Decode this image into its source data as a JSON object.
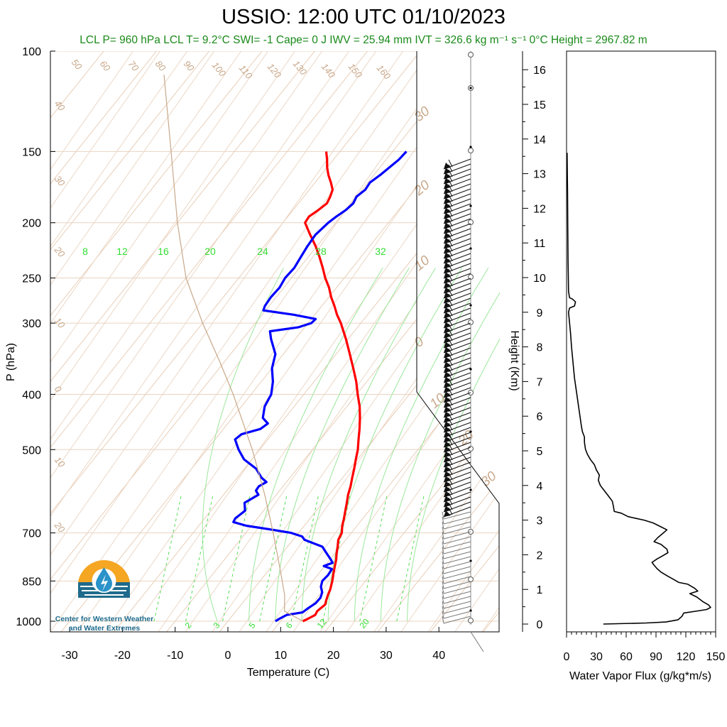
{
  "title": "USSIO: 12:00 UTC 01/10/2023",
  "subtitle": "LCL P= 960 hPa  LCL T= 9.2°C  SWI= -1  Cape= 0 J  IWV = 25.94 mm  IVT = 326.6 kg m⁻¹ s⁻¹  0°C Height = 2967.82 m",
  "logo": {
    "line1": "Center for Western Weather",
    "line2": "and Water Extremes",
    "icon": "water-drop-sun-logo"
  },
  "colors": {
    "temperature": "#ff0000",
    "dewpoint": "#0000ff",
    "isotherm": "#c8a88a",
    "mixing_ratio": "#33dd33",
    "subtitle": "#1a8a1a",
    "flux": "#000000"
  },
  "chart_data": [
    {
      "type": "line",
      "name": "skew-t",
      "xlabel": "Temperature (C)",
      "ylabel": "P (hPa)",
      "x_ticks": [
        -30,
        -20,
        -10,
        0,
        10,
        20,
        30,
        40
      ],
      "y_ticks": [
        100,
        150,
        200,
        250,
        300,
        400,
        500,
        700,
        850,
        1000
      ],
      "y_scale": "log",
      "height_ticks": [
        0,
        1,
        2,
        3,
        4,
        5,
        6,
        7,
        8,
        9,
        10,
        11,
        12,
        13,
        14,
        15,
        16
      ],
      "height_label": "Height (Km)",
      "isotherm_labels": [
        "50",
        "60",
        "70",
        "80",
        "90",
        "100",
        "110",
        "120",
        "130",
        "140",
        "150",
        "160",
        "40",
        "30",
        "20",
        "10",
        "0",
        "10",
        "20"
      ],
      "right_isotherm_labels": [
        "30",
        "20",
        "10",
        "0",
        "10",
        "20",
        "30"
      ],
      "mixing_ratio_top_labels": [
        "8",
        "12",
        "16",
        "20",
        "24",
        "28",
        "32"
      ],
      "mixing_ratio_bottom_labels": [
        "2",
        "3",
        "5",
        "6",
        "12",
        "20"
      ],
      "series": [
        {
          "name": "Temperature",
          "points": [
            [
              1000,
              14.2
            ],
            [
              990,
              14.8
            ],
            [
              975,
              15.6
            ],
            [
              960,
              15.4
            ],
            [
              950,
              15.6
            ],
            [
              935,
              15.9
            ],
            [
              920,
              15.5
            ],
            [
              900,
              15.0
            ],
            [
              880,
              14.6
            ],
            [
              860,
              14.0
            ],
            [
              850,
              13.7
            ],
            [
              820,
              12.6
            ],
            [
              800,
              11.9
            ],
            [
              780,
              11.2
            ],
            [
              760,
              10.3
            ],
            [
              740,
              9.5
            ],
            [
              720,
              8.6
            ],
            [
              700,
              8.2
            ],
            [
              680,
              7.2
            ],
            [
              660,
              6.4
            ],
            [
              640,
              5.5
            ],
            [
              620,
              4.6
            ],
            [
              600,
              3.6
            ],
            [
              580,
              2.8
            ],
            [
              560,
              1.8
            ],
            [
              540,
              0.8
            ],
            [
              520,
              -0.3
            ],
            [
              500,
              -1.4
            ],
            [
              480,
              -2.8
            ],
            [
              460,
              -4.2
            ],
            [
              440,
              -5.8
            ],
            [
              420,
              -7.6
            ],
            [
              400,
              -9.8
            ],
            [
              380,
              -12.0
            ],
            [
              360,
              -14.6
            ],
            [
              340,
              -17.4
            ],
            [
              320,
              -20.4
            ],
            [
              300,
              -23.8
            ],
            [
              290,
              -25.8
            ],
            [
              280,
              -27.6
            ],
            [
              270,
              -29.6
            ],
            [
              260,
              -31.4
            ],
            [
              250,
              -33.6
            ],
            [
              240,
              -35.6
            ],
            [
              230,
              -37.8
            ],
            [
              220,
              -40.2
            ],
            [
              210,
              -43.0
            ],
            [
              200,
              -45.8
            ],
            [
              195,
              -46.0
            ],
            [
              190,
              -45.2
            ],
            [
              185,
              -44.6
            ],
            [
              180,
              -45.0
            ],
            [
              175,
              -45.6
            ],
            [
              170,
              -47.0
            ],
            [
              165,
              -48.6
            ],
            [
              160,
              -50.0
            ],
            [
              155,
              -51.2
            ],
            [
              150,
              -52.6
            ]
          ]
        },
        {
          "name": "Dewpoint",
          "points": [
            [
              1000,
              9.0
            ],
            [
              990,
              9.4
            ],
            [
              975,
              10.2
            ],
            [
              965,
              12.8
            ],
            [
              950,
              13.2
            ],
            [
              930,
              13.9
            ],
            [
              910,
              14.0
            ],
            [
              890,
              13.5
            ],
            [
              870,
              12.4
            ],
            [
              850,
              11.8
            ],
            [
              830,
              12.0
            ],
            [
              810,
              11.8
            ],
            [
              800,
              9.8
            ],
            [
              790,
              11.0
            ],
            [
              780,
              10.2
            ],
            [
              760,
              8.4
            ],
            [
              740,
              6.6
            ],
            [
              720,
              2.2
            ],
            [
              710,
              1.2
            ],
            [
              700,
              -1.4
            ],
            [
              690,
              -6.0
            ],
            [
              680,
              -11.0
            ],
            [
              670,
              -14.0
            ],
            [
              660,
              -14.2
            ],
            [
              640,
              -13.5
            ],
            [
              620,
              -14.8
            ],
            [
              600,
              -13.4
            ],
            [
              590,
              -14.5
            ],
            [
              580,
              -14.6
            ],
            [
              570,
              -13.8
            ],
            [
              560,
              -15.4
            ],
            [
              540,
              -17.8
            ],
            [
              520,
              -21.5
            ],
            [
              500,
              -24.0
            ],
            [
              480,
              -26.2
            ],
            [
              470,
              -25.8
            ],
            [
              460,
              -23.0
            ],
            [
              450,
              -22.4
            ],
            [
              440,
              -24.2
            ],
            [
              420,
              -25.6
            ],
            [
              400,
              -26.2
            ],
            [
              380,
              -27.8
            ],
            [
              360,
              -30.0
            ],
            [
              340,
              -31.5
            ],
            [
              320,
              -34.6
            ],
            [
              310,
              -36.0
            ],
            [
              305,
              -31.2
            ],
            [
              300,
              -29.4
            ],
            [
              295,
              -29.2
            ],
            [
              290,
              -34.0
            ],
            [
              285,
              -40.4
            ],
            [
              280,
              -40.8
            ],
            [
              270,
              -41.0
            ],
            [
              260,
              -40.8
            ],
            [
              250,
              -41.2
            ],
            [
              240,
              -41.0
            ],
            [
              230,
              -41.4
            ],
            [
              220,
              -41.8
            ],
            [
              210,
              -42.0
            ],
            [
              200,
              -41.4
            ],
            [
              195,
              -40.8
            ],
            [
              190,
              -40.0
            ],
            [
              185,
              -39.6
            ],
            [
              180,
              -40.0
            ],
            [
              175,
              -39.4
            ],
            [
              170,
              -39.6
            ],
            [
              165,
              -38.8
            ],
            [
              160,
              -38.2
            ],
            [
              155,
              -37.6
            ],
            [
              150,
              -37.4
            ]
          ]
        },
        {
          "name": "Parcel",
          "points": [
            [
              1000,
              14.2
            ],
            [
              960,
              9.2
            ],
            [
              900,
              6.8
            ],
            [
              850,
              4.2
            ],
            [
              800,
              1.4
            ],
            [
              700,
              -4.8
            ],
            [
              600,
              -12.2
            ],
            [
              500,
              -21.4
            ],
            [
              400,
              -33.4
            ],
            [
              350,
              -41.0
            ],
            [
              300,
              -50.0
            ],
            [
              250,
              -60.0
            ],
            [
              200,
              -70.0
            ],
            [
              150,
              -82.0
            ],
            [
              110,
              -95.0
            ]
          ]
        }
      ]
    },
    {
      "type": "line",
      "name": "water-vapor-flux",
      "xlabel": "Water Vapor Flux (g/kg*m/s)",
      "x_ticks": [
        0,
        30,
        60,
        90,
        120,
        150
      ],
      "xlim": [
        0,
        150
      ],
      "ylim": [
        0,
        16.5
      ],
      "points": [
        [
          37,
          0.0
        ],
        [
          80,
          0.03
        ],
        [
          100,
          0.06
        ],
        [
          112,
          0.12
        ],
        [
          116,
          0.22
        ],
        [
          118,
          0.32
        ],
        [
          132,
          0.38
        ],
        [
          141,
          0.42
        ],
        [
          145,
          0.48
        ],
        [
          143,
          0.55
        ],
        [
          137,
          0.65
        ],
        [
          131,
          0.78
        ],
        [
          124,
          0.88
        ],
        [
          132,
          0.95
        ],
        [
          129,
          1.03
        ],
        [
          122,
          1.15
        ],
        [
          113,
          1.2
        ],
        [
          107,
          1.3
        ],
        [
          102,
          1.38
        ],
        [
          95,
          1.5
        ],
        [
          91,
          1.6
        ],
        [
          88,
          1.7
        ],
        [
          86,
          1.78
        ],
        [
          91,
          1.88
        ],
        [
          96,
          1.96
        ],
        [
          102,
          2.06
        ],
        [
          101,
          2.16
        ],
        [
          95,
          2.3
        ],
        [
          88,
          2.38
        ],
        [
          92,
          2.5
        ],
        [
          97,
          2.62
        ],
        [
          101,
          2.72
        ],
        [
          94,
          2.82
        ],
        [
          87,
          2.92
        ],
        [
          78,
          3.0
        ],
        [
          70,
          3.05
        ],
        [
          62,
          3.1
        ],
        [
          55,
          3.2
        ],
        [
          48,
          3.25
        ],
        [
          47,
          3.42
        ],
        [
          46,
          3.55
        ],
        [
          42,
          3.7
        ],
        [
          38,
          3.85
        ],
        [
          34,
          4.0
        ],
        [
          32,
          4.15
        ],
        [
          33,
          4.3
        ],
        [
          30,
          4.45
        ],
        [
          28,
          4.6
        ],
        [
          24,
          4.75
        ],
        [
          21,
          4.9
        ],
        [
          19,
          5.05
        ],
        [
          18,
          5.25
        ],
        [
          18,
          5.4
        ],
        [
          16,
          5.55
        ],
        [
          15,
          5.7
        ],
        [
          14,
          5.9
        ],
        [
          13,
          6.1
        ],
        [
          12,
          6.3
        ],
        [
          11,
          6.5
        ],
        [
          10,
          6.7
        ],
        [
          9,
          6.9
        ],
        [
          8,
          7.1
        ],
        [
          7,
          7.4
        ],
        [
          6,
          7.7
        ],
        [
          5,
          8.0
        ],
        [
          4,
          8.4
        ],
        [
          3,
          8.7
        ],
        [
          2,
          9.0
        ],
        [
          3,
          9.12
        ],
        [
          8,
          9.18
        ],
        [
          9,
          9.3
        ],
        [
          6,
          9.38
        ],
        [
          3,
          9.42
        ],
        [
          2,
          9.6
        ],
        [
          1.5,
          10.5
        ],
        [
          1.2,
          11.5
        ],
        [
          1.0,
          12.5
        ],
        [
          0.8,
          13.0
        ],
        [
          0.6,
          13.6
        ]
      ]
    }
  ]
}
